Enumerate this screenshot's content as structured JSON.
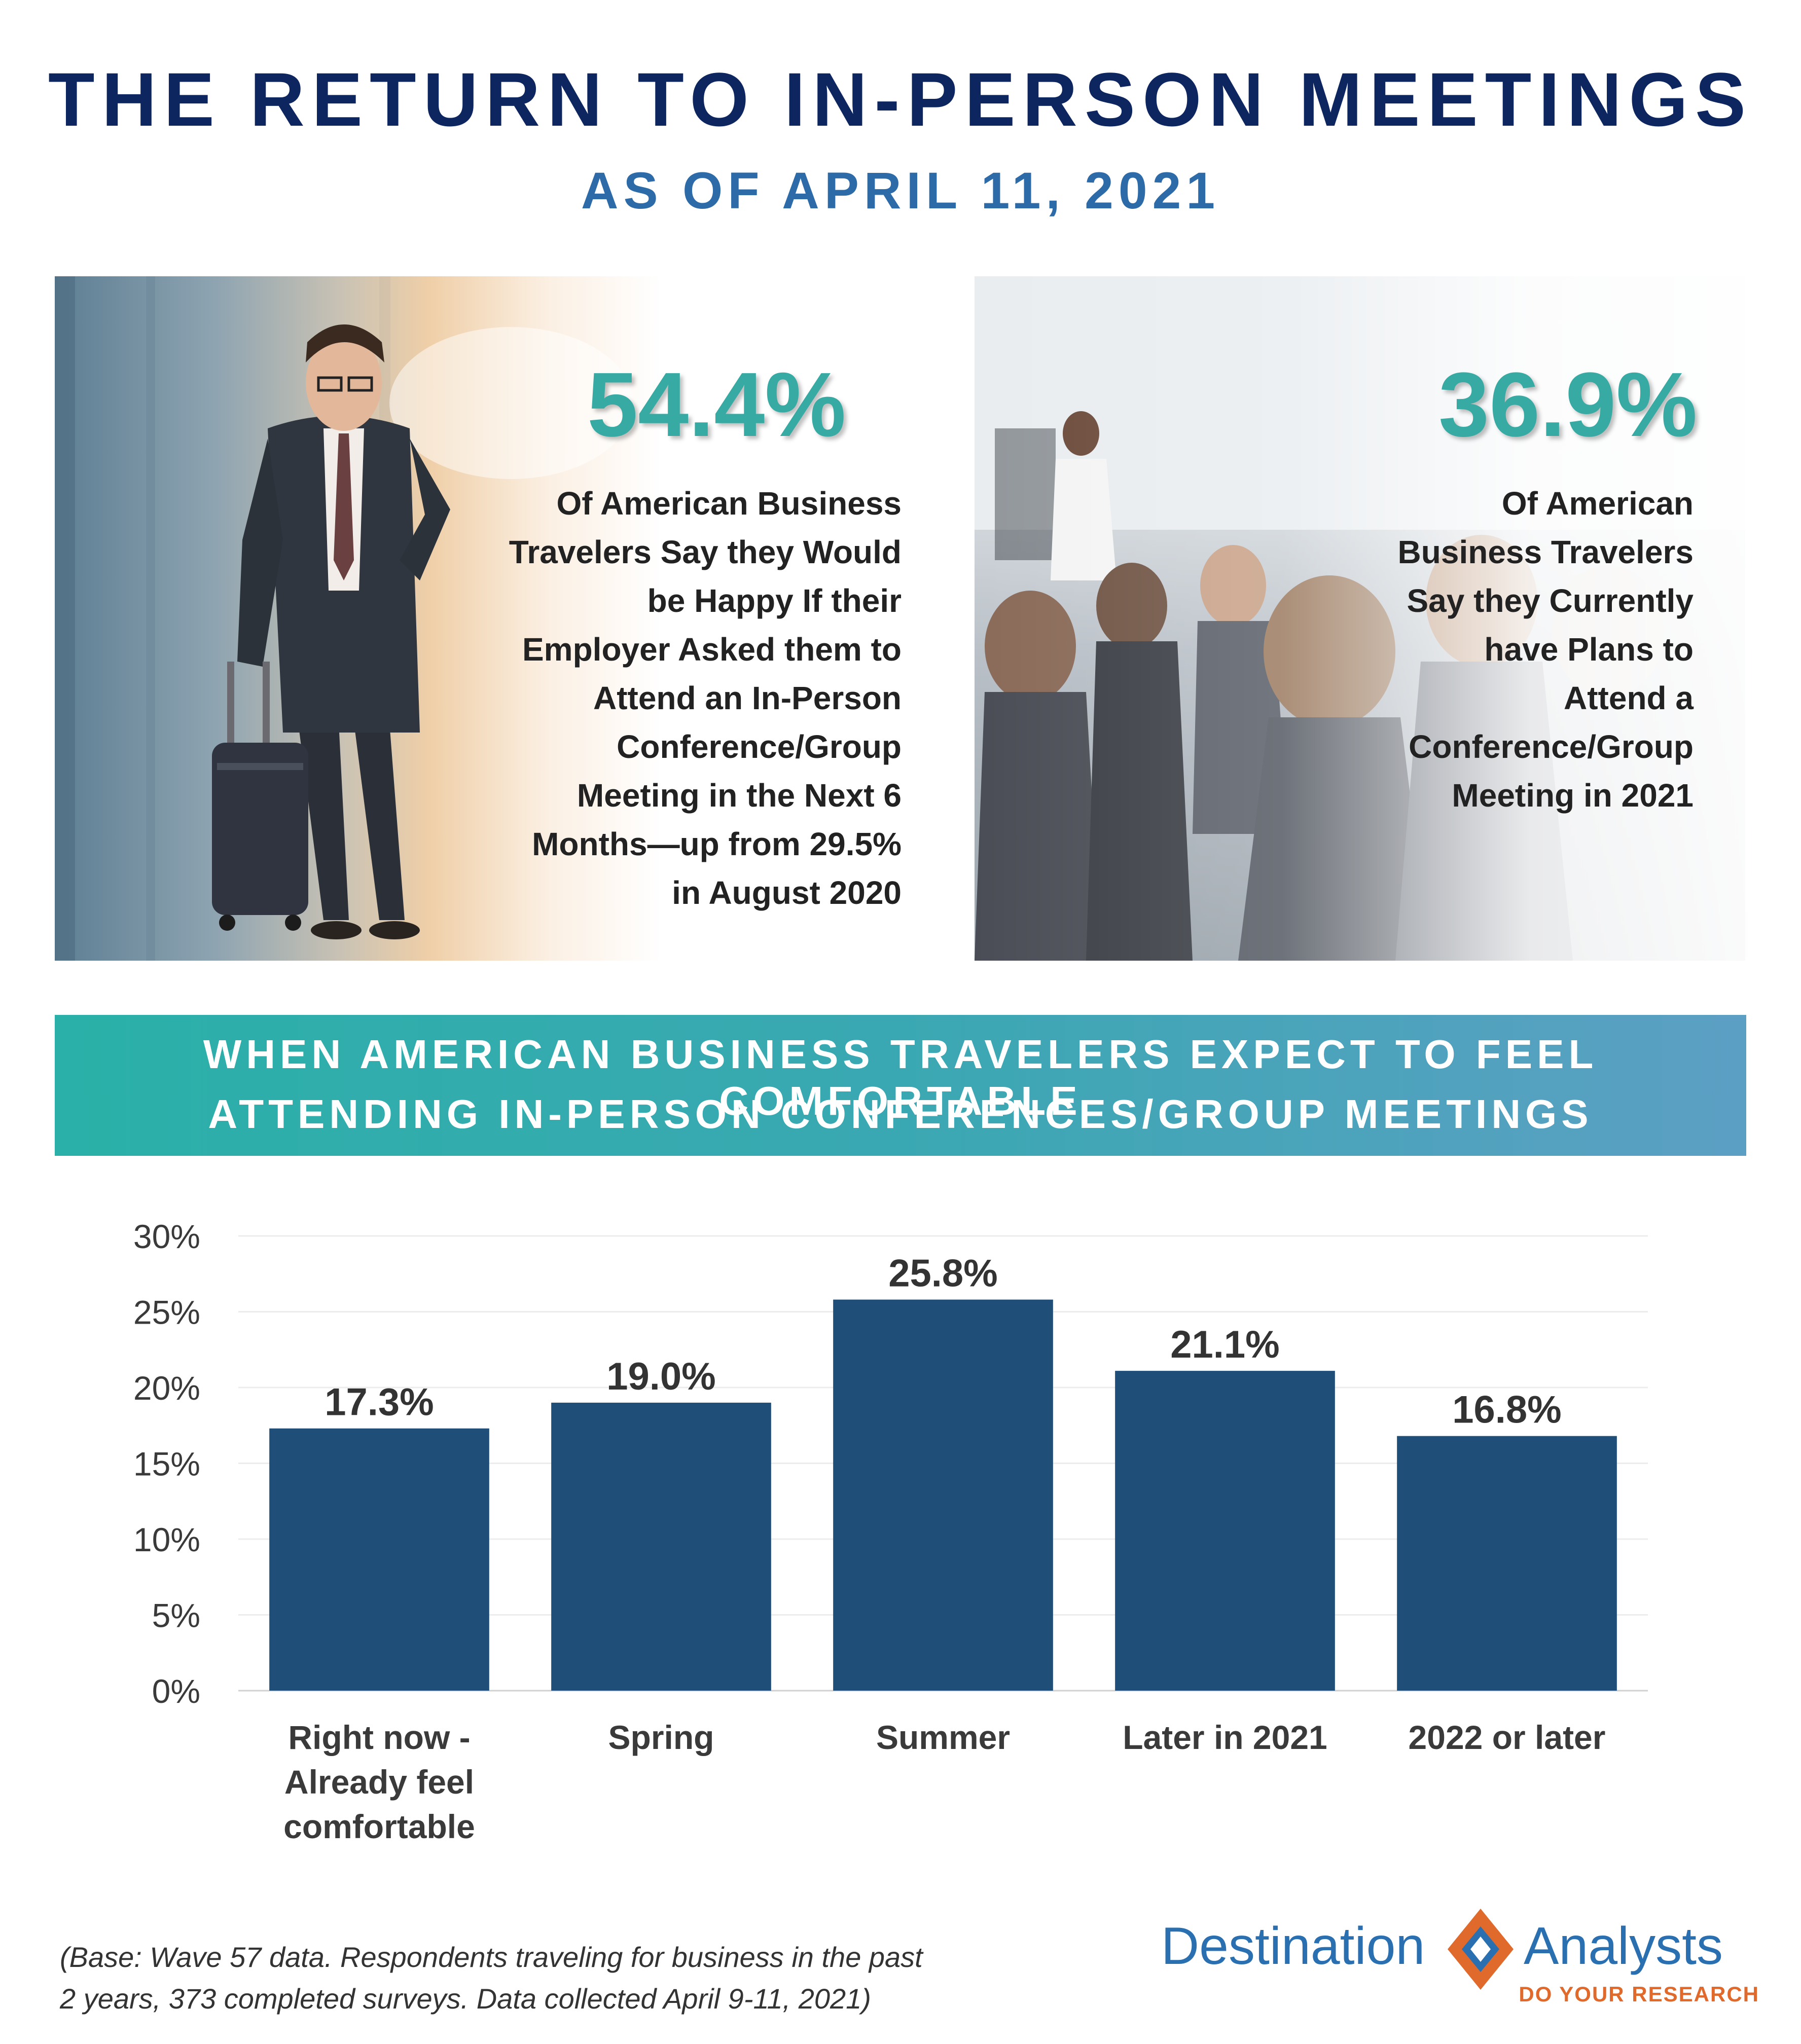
{
  "header": {
    "title": "THE RETURN TO IN-PERSON MEETINGS",
    "subtitle": "AS OF APRIL 11, 2021"
  },
  "stats": [
    {
      "value": "54.4%",
      "lines": [
        "Of American Business",
        "Travelers Say they Would",
        "be Happy If their",
        "Employer Asked them to",
        "Attend an In-Person",
        "Conference/Group",
        "Meeting in the Next 6",
        "Months—up from 29.5%",
        "in August 2020"
      ]
    },
    {
      "value": "36.9%",
      "lines": [
        "Of American",
        "Business Travelers",
        "Say they Currently",
        "have Plans to",
        "Attend a",
        "Conference/Group",
        "Meeting in 2021"
      ]
    }
  ],
  "banner": {
    "line1": "WHEN AMERICAN BUSINESS TRAVELERS EXPECT TO FEEL COMFORTABLE",
    "line2": "ATTENDING IN-PERSON CONFERENCES/GROUP MEETINGS"
  },
  "chart_data": {
    "type": "bar",
    "categories": [
      [
        "Right now -",
        "Already feel",
        "comfortable"
      ],
      [
        "Spring"
      ],
      [
        "Summer"
      ],
      [
        "Later in 2021"
      ],
      [
        "2022 or later"
      ]
    ],
    "values": [
      17.3,
      19.0,
      25.8,
      21.1,
      16.8
    ],
    "value_labels": [
      "17.3%",
      "19.0%",
      "25.8%",
      "21.1%",
      "16.8%"
    ],
    "yticks": [
      "0%",
      "5%",
      "10%",
      "15%",
      "20%",
      "25%",
      "30%"
    ],
    "ylim": [
      0,
      30
    ],
    "grid": true,
    "bar_color": "#1f4e79"
  },
  "footnote": {
    "line1": "(Base: Wave 57 data. Respondents traveling for business in the past",
    "line2": "2 years, 373 completed surveys. Data collected April 9-11, 2021)"
  },
  "logo": {
    "word1": "Destination",
    "word2": "Analysts",
    "tagline": "DO YOUR RESEARCH",
    "colors": {
      "blue": "#2a6fb0",
      "orange": "#e06a2b"
    }
  }
}
